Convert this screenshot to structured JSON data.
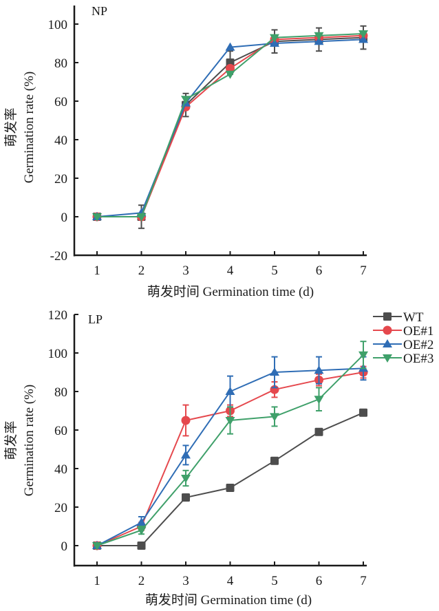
{
  "colors": {
    "WT": "#4d4d4d",
    "OE#1": "#e5484d",
    "OE#2": "#2f6db5",
    "OE#3": "#3fa06a",
    "axis": "#1a1a1a"
  },
  "chart_data": [
    {
      "type": "line",
      "panel_label": "NP",
      "xlabel": "萌发时间 Germination time (d)",
      "ylabel_cn": "萌发率",
      "ylabel": "Germination rate (%)",
      "x": [
        1,
        2,
        3,
        4,
        5,
        6,
        7
      ],
      "xticks": [
        "1",
        "2",
        "3",
        "4",
        "5",
        "6",
        "7"
      ],
      "yticks": [
        "-20",
        "0",
        "20",
        "40",
        "60",
        "80",
        "100"
      ],
      "ytick_values": [
        -20,
        0,
        20,
        40,
        60,
        80,
        100
      ],
      "ylim": [
        -20,
        110
      ],
      "xlim": [
        0.5,
        7.5
      ],
      "grid": false,
      "series": [
        {
          "name": "WT",
          "marker": "square",
          "values": [
            0,
            0,
            58,
            80,
            91,
            92,
            93
          ],
          "errors": [
            0,
            6,
            6,
            6,
            6,
            6,
            6
          ]
        },
        {
          "name": "OE#1",
          "marker": "circle",
          "values": [
            0,
            0,
            57,
            77,
            92,
            93,
            94
          ],
          "errors": [
            0,
            0,
            0,
            0,
            0,
            0,
            0
          ]
        },
        {
          "name": "OE#2",
          "marker": "triangle-up",
          "values": [
            0,
            2,
            59,
            88,
            90,
            91,
            92
          ],
          "errors": [
            0,
            0,
            0,
            0,
            0,
            0,
            0
          ]
        },
        {
          "name": "OE#3",
          "marker": "triangle-down",
          "values": [
            0,
            0,
            61,
            74,
            93,
            94,
            95
          ],
          "errors": [
            0,
            0,
            0,
            0,
            0,
            0,
            0
          ]
        }
      ]
    },
    {
      "type": "line",
      "panel_label": "LP",
      "xlabel": "萌发时间 Germination time (d)",
      "ylabel_cn": "萌发率",
      "ylabel": "Germination rate (%)",
      "x": [
        1,
        2,
        3,
        4,
        5,
        6,
        7
      ],
      "xticks": [
        "1",
        "2",
        "3",
        "4",
        "5",
        "6",
        "7"
      ],
      "yticks": [
        "0",
        "20",
        "40",
        "60",
        "80",
        "100",
        "120"
      ],
      "ytick_values": [
        0,
        20,
        40,
        60,
        80,
        100,
        120
      ],
      "ylim": [
        -10,
        120
      ],
      "xlim": [
        0.5,
        7.5
      ],
      "grid": false,
      "legend": {
        "position": "top-right",
        "entries": [
          "WT",
          "OE#1",
          "OE#2",
          "OE#3"
        ]
      },
      "series": [
        {
          "name": "WT",
          "marker": "square",
          "values": [
            0,
            0,
            25,
            30,
            44,
            59,
            69
          ],
          "errors": [
            0,
            0,
            0,
            0,
            0,
            0,
            0
          ]
        },
        {
          "name": "OE#1",
          "marker": "circle",
          "values": [
            0,
            10,
            65,
            70,
            81,
            86,
            90
          ],
          "errors": [
            0,
            2,
            8,
            3,
            4,
            3,
            3
          ]
        },
        {
          "name": "OE#2",
          "marker": "triangle-up",
          "values": [
            0,
            12,
            47,
            80,
            90,
            91,
            92
          ],
          "errors": [
            0,
            3,
            5,
            8,
            8,
            7,
            6
          ]
        },
        {
          "name": "OE#3",
          "marker": "triangle-down",
          "values": [
            0,
            8,
            35,
            65,
            67,
            76,
            99
          ],
          "errors": [
            0,
            2,
            4,
            7,
            5,
            6,
            7
          ]
        }
      ]
    }
  ]
}
